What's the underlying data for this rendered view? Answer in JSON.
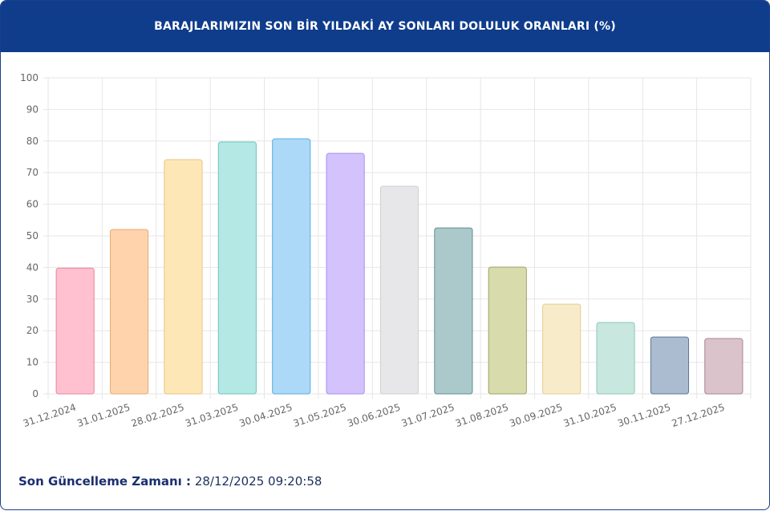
{
  "chart_data": {
    "type": "bar",
    "title": "BARAJLARIMIZIN SON BİR YILDAKİ AY SONLARI DOLULUK ORANLARI (%)",
    "categories": [
      "31.12.2024",
      "31.01.2025",
      "28.02.2025",
      "31.03.2025",
      "30.04.2025",
      "31.05.2025",
      "30.06.2025",
      "31.07.2025",
      "31.08.2025",
      "30.09.2025",
      "31.10.2025",
      "30.11.2025",
      "27.12.2025"
    ],
    "values": [
      39.8,
      52.0,
      74.1,
      79.7,
      80.7,
      76.1,
      65.7,
      52.5,
      40.1,
      28.4,
      22.6,
      18.0,
      17.5
    ],
    "colors": [
      "#ffc0d0",
      "#ffd3ac",
      "#fde7b6",
      "#b4e8e4",
      "#acd9f7",
      "#d4c2fd",
      "#e7e7e9",
      "#abc9ca",
      "#d8dcad",
      "#f7ebc9",
      "#c8e7de",
      "#abbbd0",
      "#dac3ca"
    ],
    "border_colors": [
      "#e8859c",
      "#e6a970",
      "#e8c680",
      "#6bc6bf",
      "#5aaedf",
      "#a88ef0",
      "#cfcfd3",
      "#5f8f8f",
      "#9ea266",
      "#e3cf93",
      "#8cc9b6",
      "#5f7596",
      "#a98692"
    ],
    "ylim": [
      0,
      100
    ],
    "yticks": [
      0,
      10,
      20,
      30,
      40,
      50,
      60,
      70,
      80,
      90,
      100
    ],
    "grid": true
  },
  "footer": {
    "label": "Son Güncelleme Zamanı :",
    "value": "28/12/2025 09:20:58"
  }
}
